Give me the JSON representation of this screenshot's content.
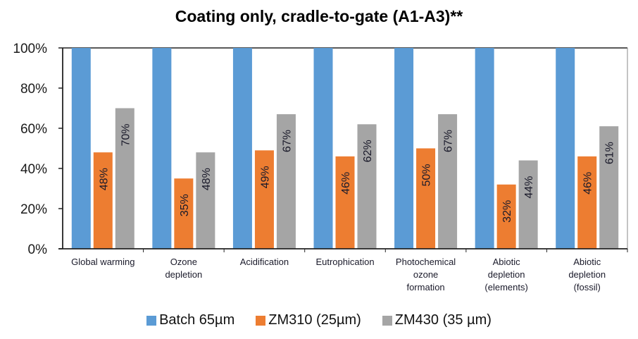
{
  "chart_data": {
    "type": "bar",
    "title": "Coating only, cradle-to-gate  (A1-A3)**",
    "xlabel": "",
    "ylabel": "",
    "ylim": [
      0,
      100
    ],
    "yticks": [
      "0%",
      "20%",
      "40%",
      "60%",
      "80%",
      "100%"
    ],
    "ytick_values": [
      0,
      20,
      40,
      60,
      80,
      100
    ],
    "grid": false,
    "legend_position": "bottom",
    "categories": [
      [
        "Global warming"
      ],
      [
        "Ozone",
        "depletion"
      ],
      [
        "Acidification"
      ],
      [
        "Eutrophication"
      ],
      [
        "Photochemical",
        "ozone",
        "formation"
      ],
      [
        "Abiotic",
        "depletion",
        "(elements)"
      ],
      [
        "Abiotic",
        "depletion",
        "(fossil)"
      ]
    ],
    "series": [
      {
        "name": "Batch 65µm",
        "color": "#5B9BD5",
        "values": [
          100,
          100,
          100,
          100,
          100,
          100,
          100
        ],
        "labels": [
          "",
          "",
          "",
          "",
          "",
          "",
          ""
        ]
      },
      {
        "name": "ZM310 (25µm)",
        "color": "#ED7D31",
        "values": [
          48,
          35,
          49,
          46,
          50,
          32,
          46
        ],
        "labels": [
          "48%",
          "35%",
          "49%",
          "46%",
          "50%",
          "32%",
          "46%"
        ]
      },
      {
        "name": "ZM430 (35 µm)",
        "color": "#A5A5A5",
        "values": [
          70,
          48,
          67,
          62,
          67,
          44,
          61
        ],
        "labels": [
          "70%",
          "48%",
          "67%",
          "62%",
          "67%",
          "44%",
          "61%"
        ]
      }
    ]
  }
}
